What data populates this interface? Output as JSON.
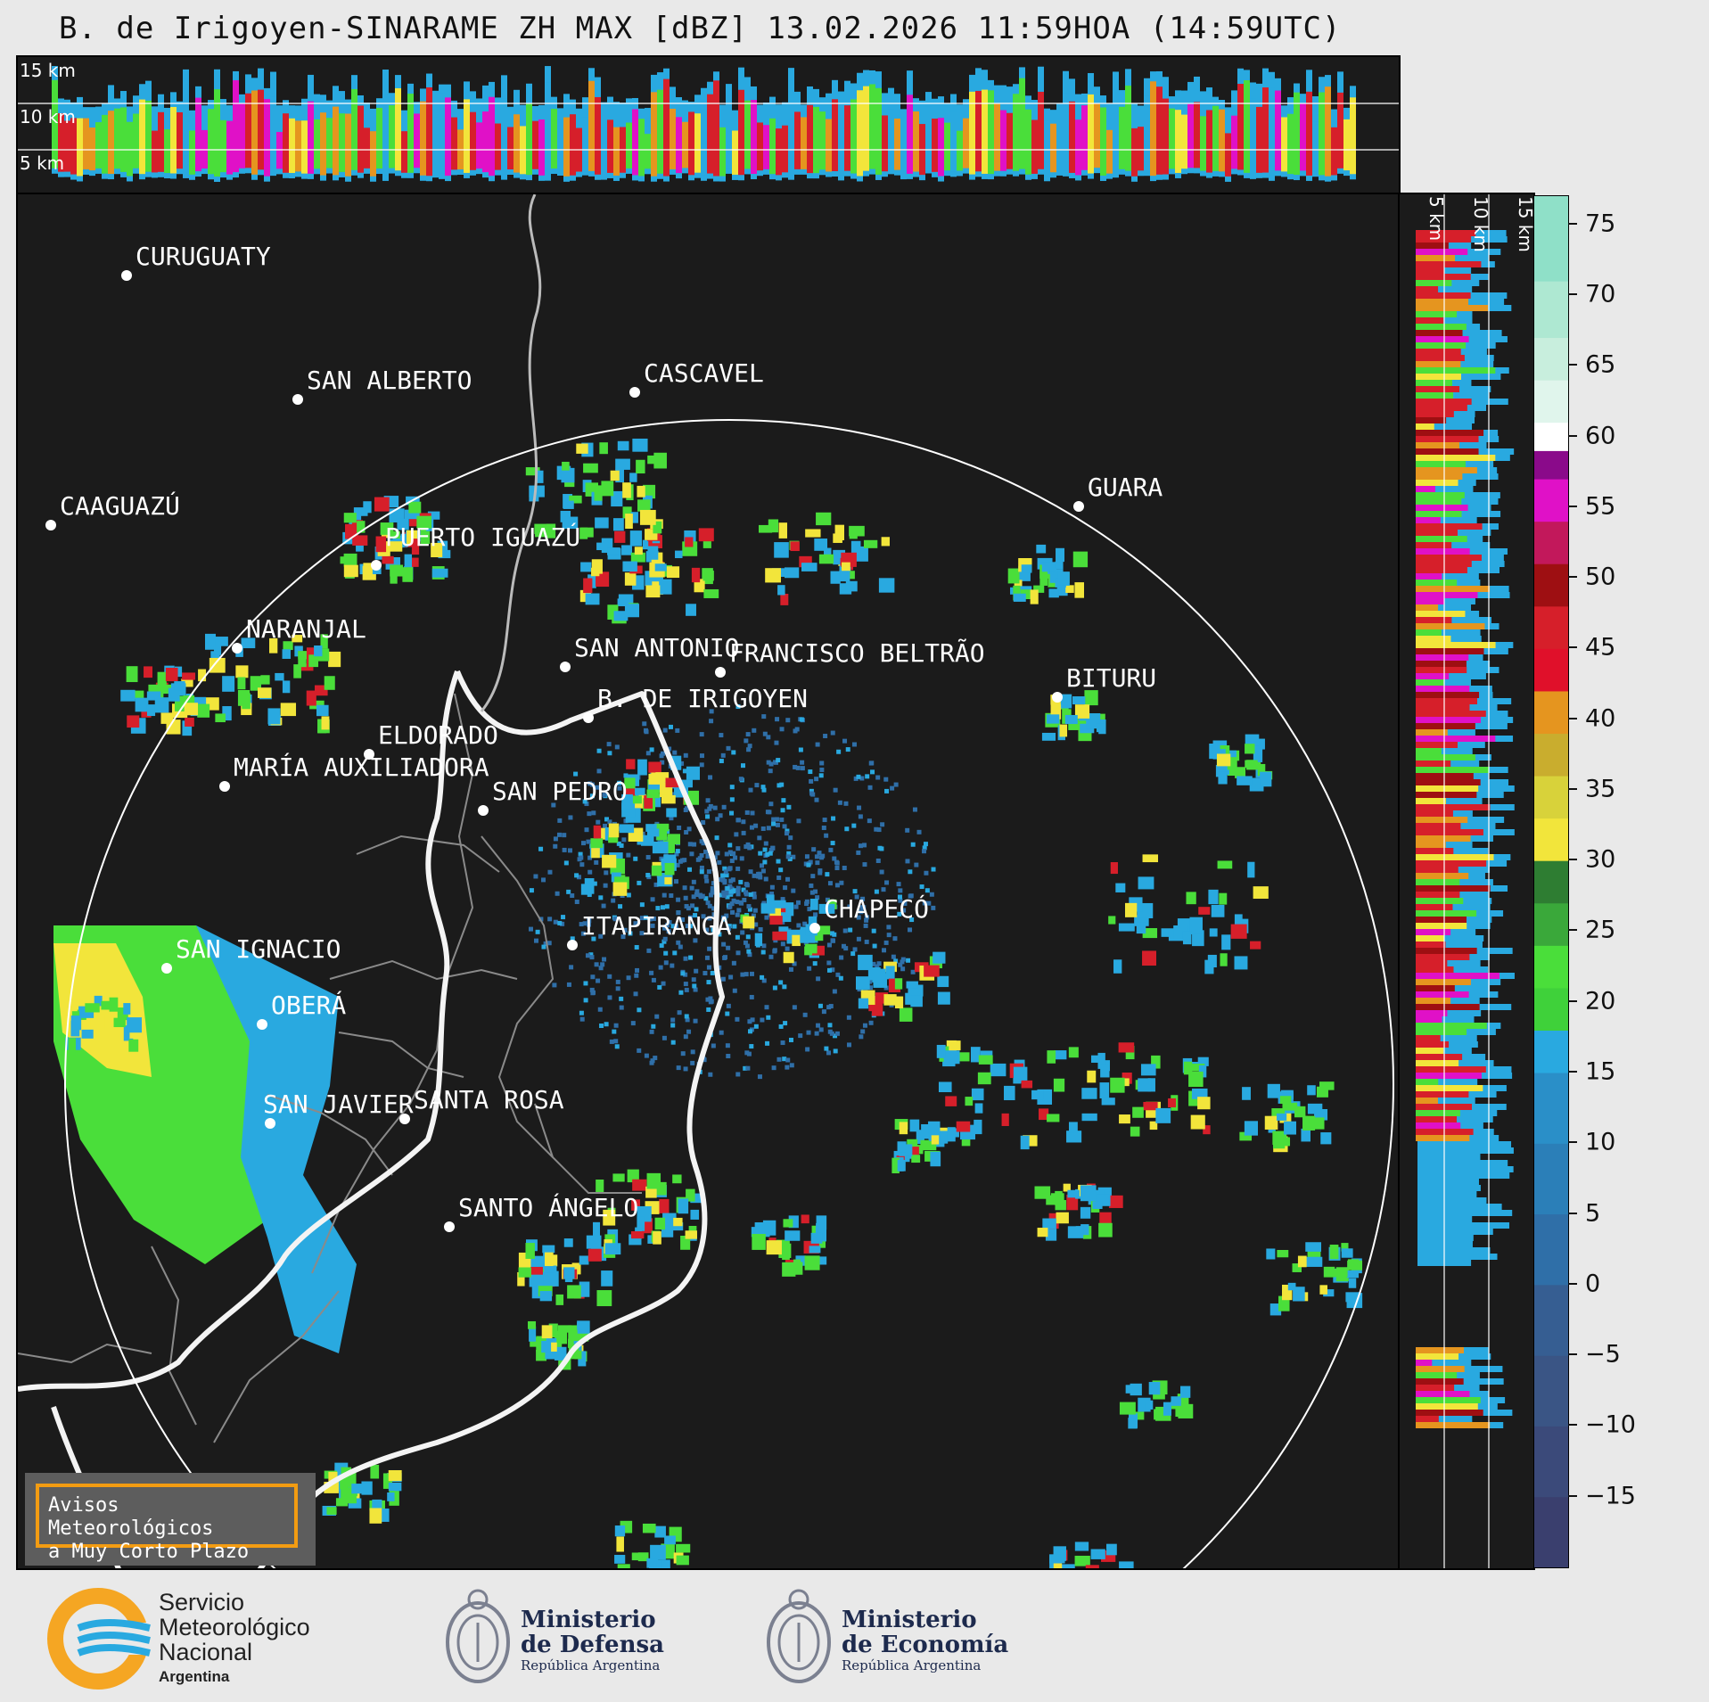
{
  "title": "B. de Irigoyen-SINARAME ZH MAX [dBZ] 13.02.2026 11:59HOA (14:59UTC)",
  "top_panel": {
    "km_labels": [
      "15 km",
      "10 km",
      "5 km"
    ]
  },
  "side_panel": {
    "km_labels": [
      "5 km",
      "10 km",
      "15 km"
    ]
  },
  "colorbar": {
    "ticks": [
      "75",
      "70",
      "65",
      "60",
      "55",
      "50",
      "45",
      "40",
      "35",
      "30",
      "25",
      "20",
      "15",
      "10",
      "5",
      "0",
      "−5",
      "−10",
      "−15"
    ],
    "colors": {
      "lowest": "#3a3f6e",
      "blue_mid": "#2f6fa8",
      "cyan": "#29a9e0",
      "green_low": "#2e7d32",
      "green": "#4ade3a",
      "yellow": "#f2e53b",
      "orange": "#e5951f",
      "red": "#d61f2a",
      "darkred": "#9e0f12",
      "magenta": "#e011c7",
      "purple": "#8a0a8a",
      "white": "#ffffff",
      "teal": "#8fe0c8"
    }
  },
  "cities": [
    {
      "name": "CURUGUATY"
    },
    {
      "name": "SAN ALBERTO"
    },
    {
      "name": "CASCAVEL"
    },
    {
      "name": "CAAGUAZÚ"
    },
    {
      "name": "GUARA"
    },
    {
      "name": "PUERTO IGUAZÚ"
    },
    {
      "name": "NARANJAL"
    },
    {
      "name": "SAN ANTONIO"
    },
    {
      "name": "FRANCISCO BELTRÃO"
    },
    {
      "name": "BITURU"
    },
    {
      "name": "B. DE IRIGOYEN"
    },
    {
      "name": "ELDORADO"
    },
    {
      "name": "MARÍA AUXILIADORA"
    },
    {
      "name": "SAN PEDRO"
    },
    {
      "name": "CHAPECÓ"
    },
    {
      "name": "ITAPIRANGA"
    },
    {
      "name": "SAN IGNACIO"
    },
    {
      "name": "OBERÁ"
    },
    {
      "name": "SAN JAVIER"
    },
    {
      "name": "SANTA ROSA"
    },
    {
      "name": "SANTO ÁNGELO"
    }
  ],
  "warning": {
    "line1": "Avisos Meteorológicos",
    "line2": "a Muy Corto Plazo"
  },
  "logos": {
    "smn": {
      "line1": "Servicio",
      "line2": "Meteorológico",
      "line3": "Nacional",
      "line4": "Argentina"
    },
    "defensa": {
      "line1": "Ministerio",
      "line2": "de Defensa",
      "line3": "República Argentina"
    },
    "economia": {
      "line1": "Ministerio",
      "line2": "de Economía",
      "line3": "República Argentina"
    }
  }
}
